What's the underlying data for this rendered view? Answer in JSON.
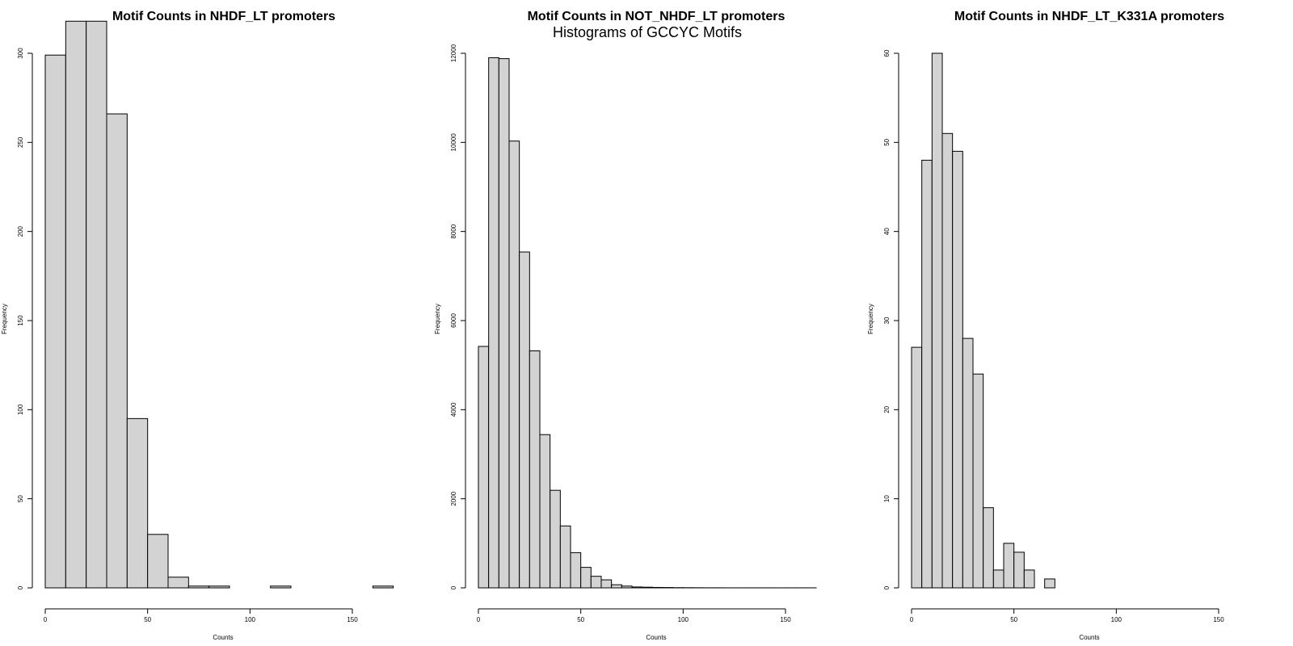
{
  "suptitle": "Histograms of GCCYC Motifs",
  "chart_data": [
    {
      "type": "bar",
      "title": "Motif Counts in NHDF_LT promoters",
      "xlabel": "Counts",
      "ylabel": "Frequency",
      "xlim": [
        0,
        150
      ],
      "ylim": [
        0,
        300
      ],
      "xticks": [
        0,
        50,
        100,
        150
      ],
      "yticks": [
        0,
        50,
        100,
        150,
        200,
        250,
        300
      ],
      "bin_width": 10,
      "bin_start": 0,
      "values": [
        299,
        318,
        318,
        266,
        95,
        30,
        6,
        1,
        1,
        0,
        0,
        1,
        0,
        0,
        0,
        0,
        1
      ]
    },
    {
      "type": "bar",
      "title": "Motif Counts in NOT_NHDF_LT promoters",
      "xlabel": "Counts",
      "ylabel": "Frequency",
      "xlim": [
        0,
        150
      ],
      "ylim": [
        0,
        12000
      ],
      "xticks": [
        0,
        50,
        100,
        150
      ],
      "yticks": [
        0,
        2000,
        4000,
        6000,
        8000,
        10000,
        12000
      ],
      "bin_width": 5,
      "bin_start": 0,
      "values": [
        5420,
        11900,
        11880,
        10030,
        7540,
        5320,
        3440,
        2190,
        1390,
        790,
        460,
        260,
        180,
        70,
        40,
        20,
        15,
        10,
        8,
        5,
        4,
        3,
        2,
        2,
        1,
        1,
        1,
        1,
        1,
        1,
        1,
        1,
        1
      ]
    },
    {
      "type": "bar",
      "title": "Motif Counts in NHDF_LT_K331A promoters",
      "xlabel": "Counts",
      "ylabel": "Frequency",
      "xlim": [
        0,
        150
      ],
      "ylim": [
        0,
        60
      ],
      "xticks": [
        0,
        50,
        100,
        150
      ],
      "yticks": [
        0,
        10,
        20,
        30,
        40,
        50,
        60
      ],
      "bin_width": 5,
      "bin_start": 0,
      "values": [
        27,
        48,
        60,
        51,
        49,
        28,
        24,
        9,
        2,
        5,
        4,
        2,
        0,
        1
      ]
    }
  ]
}
